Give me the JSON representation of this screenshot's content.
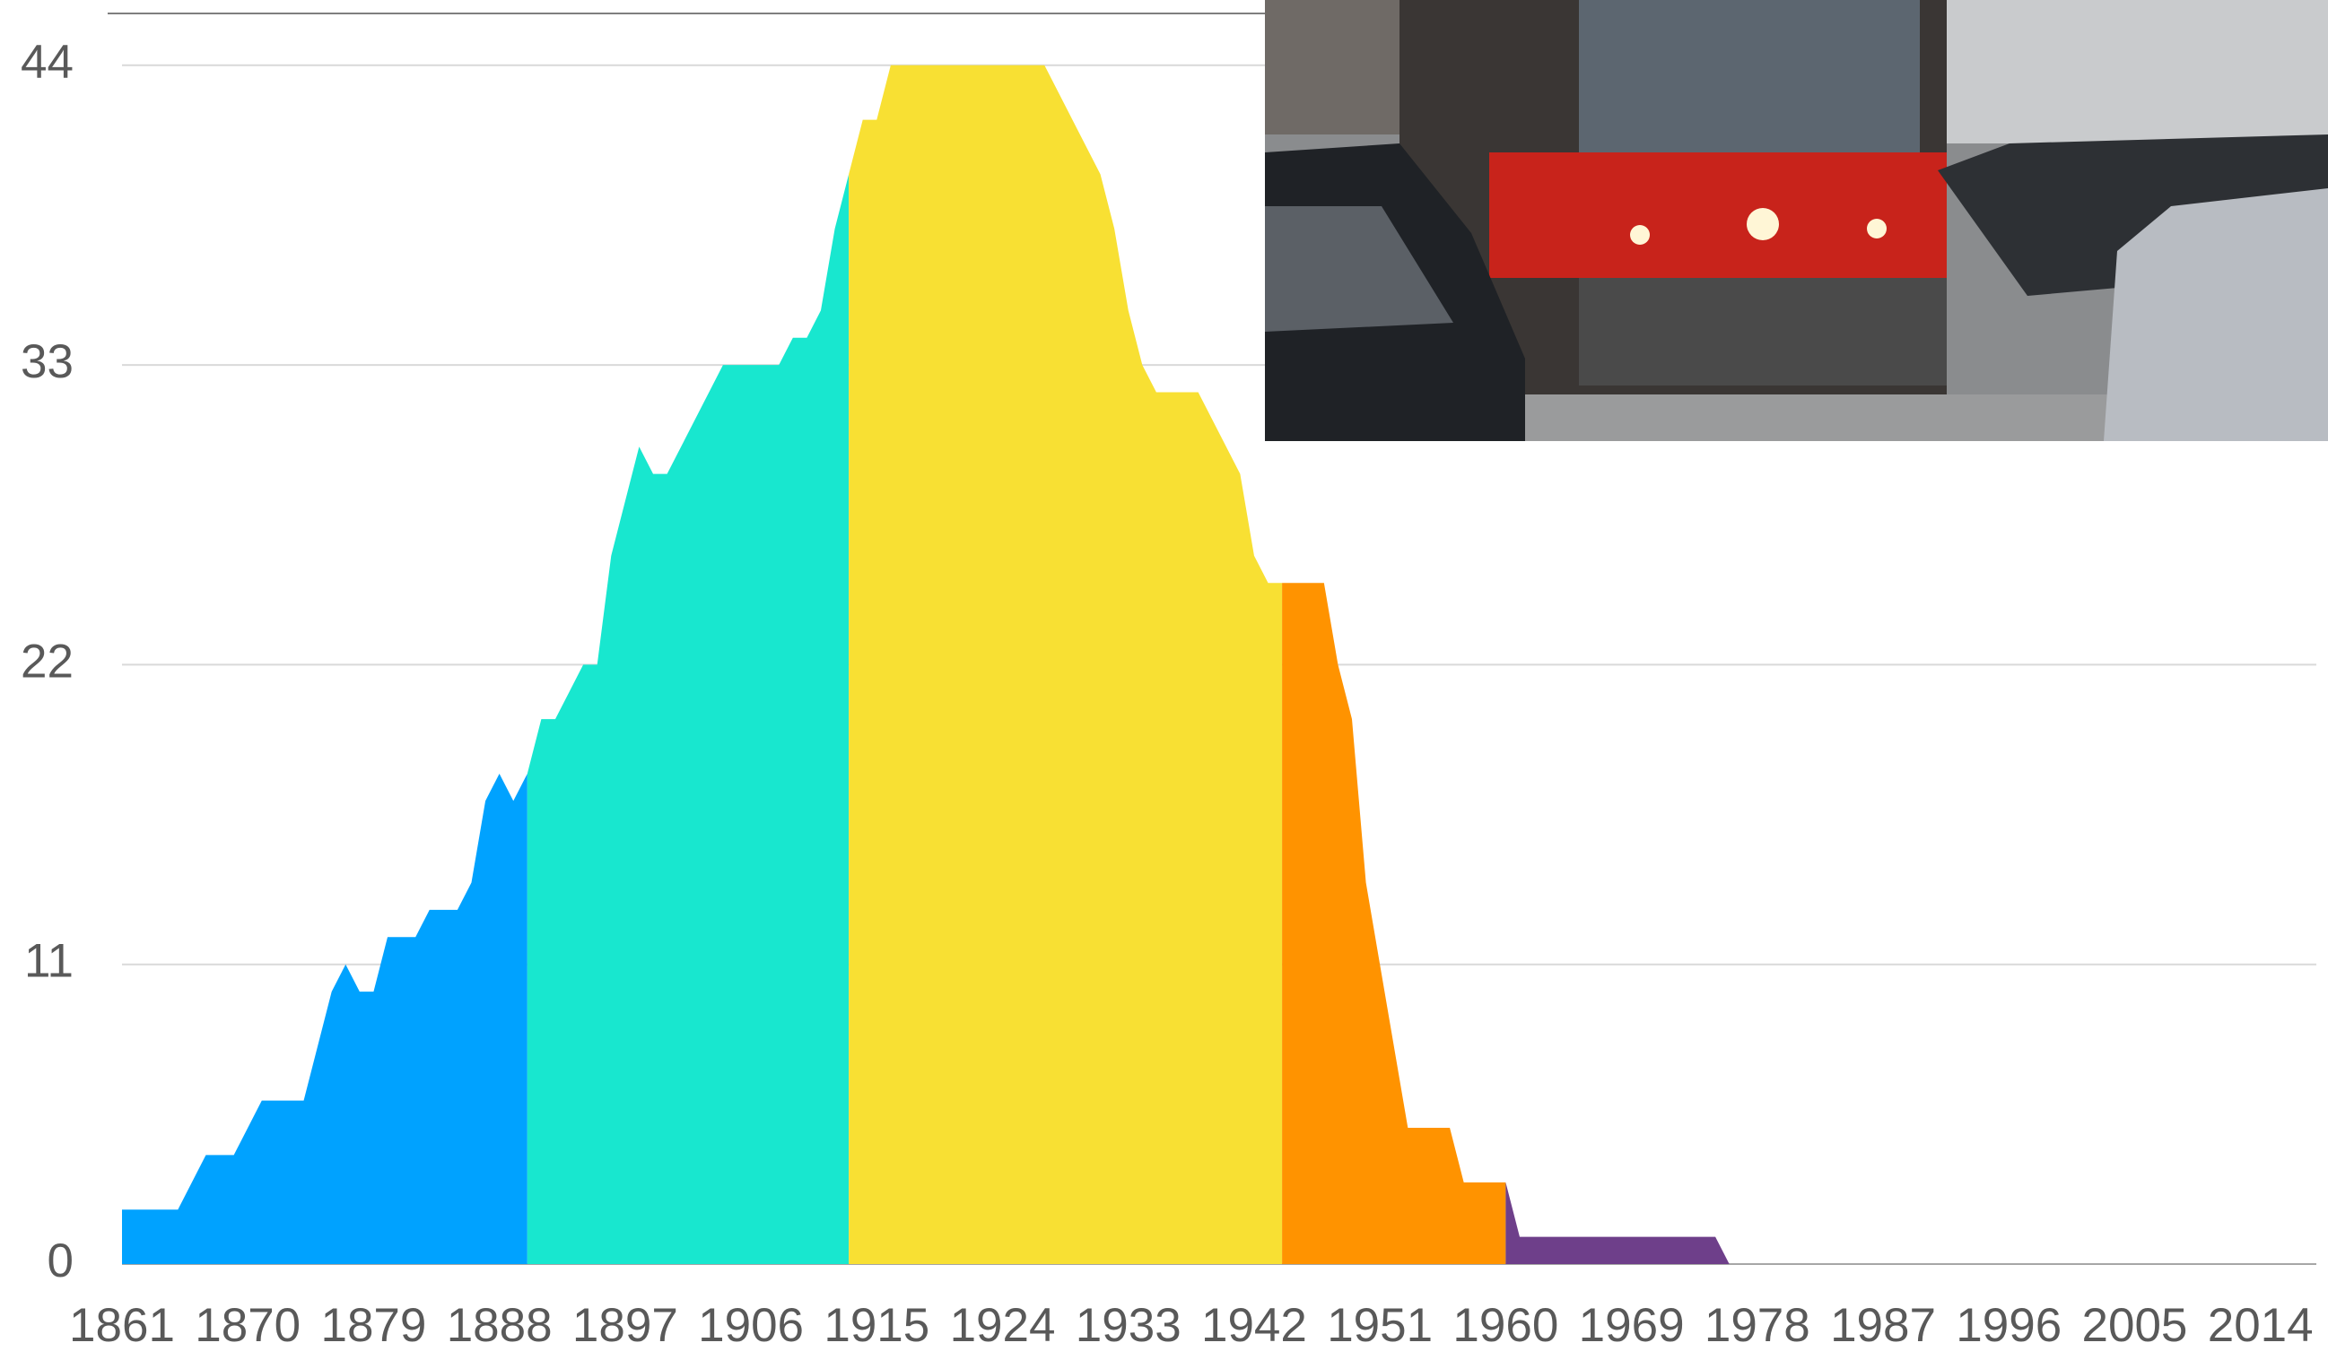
{
  "chart_data": {
    "type": "area",
    "xlim": [
      1861,
      2018
    ],
    "xticks": [
      1861,
      1870,
      1879,
      1888,
      1897,
      1906,
      1915,
      1924,
      1933,
      1942,
      1951,
      1960,
      1969,
      1978,
      1987,
      1996,
      2005,
      2014
    ],
    "ylim": [
      0,
      46
    ],
    "yticks": [
      0,
      11,
      22,
      33,
      44
    ],
    "grid": true,
    "series": [
      {
        "color": "#00a2ff",
        "x": [
          1861,
          1865,
          1867,
          1869,
          1871,
          1874,
          1876,
          1877,
          1878,
          1879,
          1880,
          1882,
          1883,
          1885,
          1886,
          1887,
          1888,
          1889,
          1890
        ],
        "values": [
          2,
          2,
          4,
          4,
          6,
          6,
          10,
          11,
          10,
          10,
          12,
          12,
          13,
          13,
          14,
          17,
          18,
          17,
          18
        ]
      },
      {
        "color": "#18e7cf",
        "x": [
          1890,
          1891,
          1892,
          1894,
          1895,
          1896,
          1897,
          1898,
          1899,
          1900,
          1904,
          1908,
          1909,
          1910,
          1911,
          1912,
          1913
        ],
        "values": [
          18,
          20,
          20,
          22,
          22,
          26,
          28,
          30,
          29,
          29,
          33,
          33,
          34,
          34,
          35,
          38,
          40
        ]
      },
      {
        "color": "#f8e033",
        "x": [
          1913,
          1914,
          1915,
          1916,
          1927,
          1929,
          1931,
          1932,
          1933,
          1934,
          1935,
          1938,
          1940,
          1941,
          1942,
          1943,
          1944
        ],
        "values": [
          40,
          42,
          42,
          44,
          44,
          42,
          40,
          38,
          35,
          33,
          32,
          32,
          30,
          29,
          26,
          25,
          25
        ]
      },
      {
        "color": "#ff9300",
        "x": [
          1944,
          1947,
          1948,
          1949,
          1950,
          1951,
          1953,
          1956,
          1957,
          1960
        ],
        "values": [
          25,
          25,
          22,
          20,
          14,
          11,
          5,
          5,
          3,
          3
        ]
      },
      {
        "color": "#6e3f8a",
        "x": [
          1960,
          1961,
          1975,
          1976
        ],
        "values": [
          3,
          1,
          1,
          0
        ]
      }
    ]
  }
}
